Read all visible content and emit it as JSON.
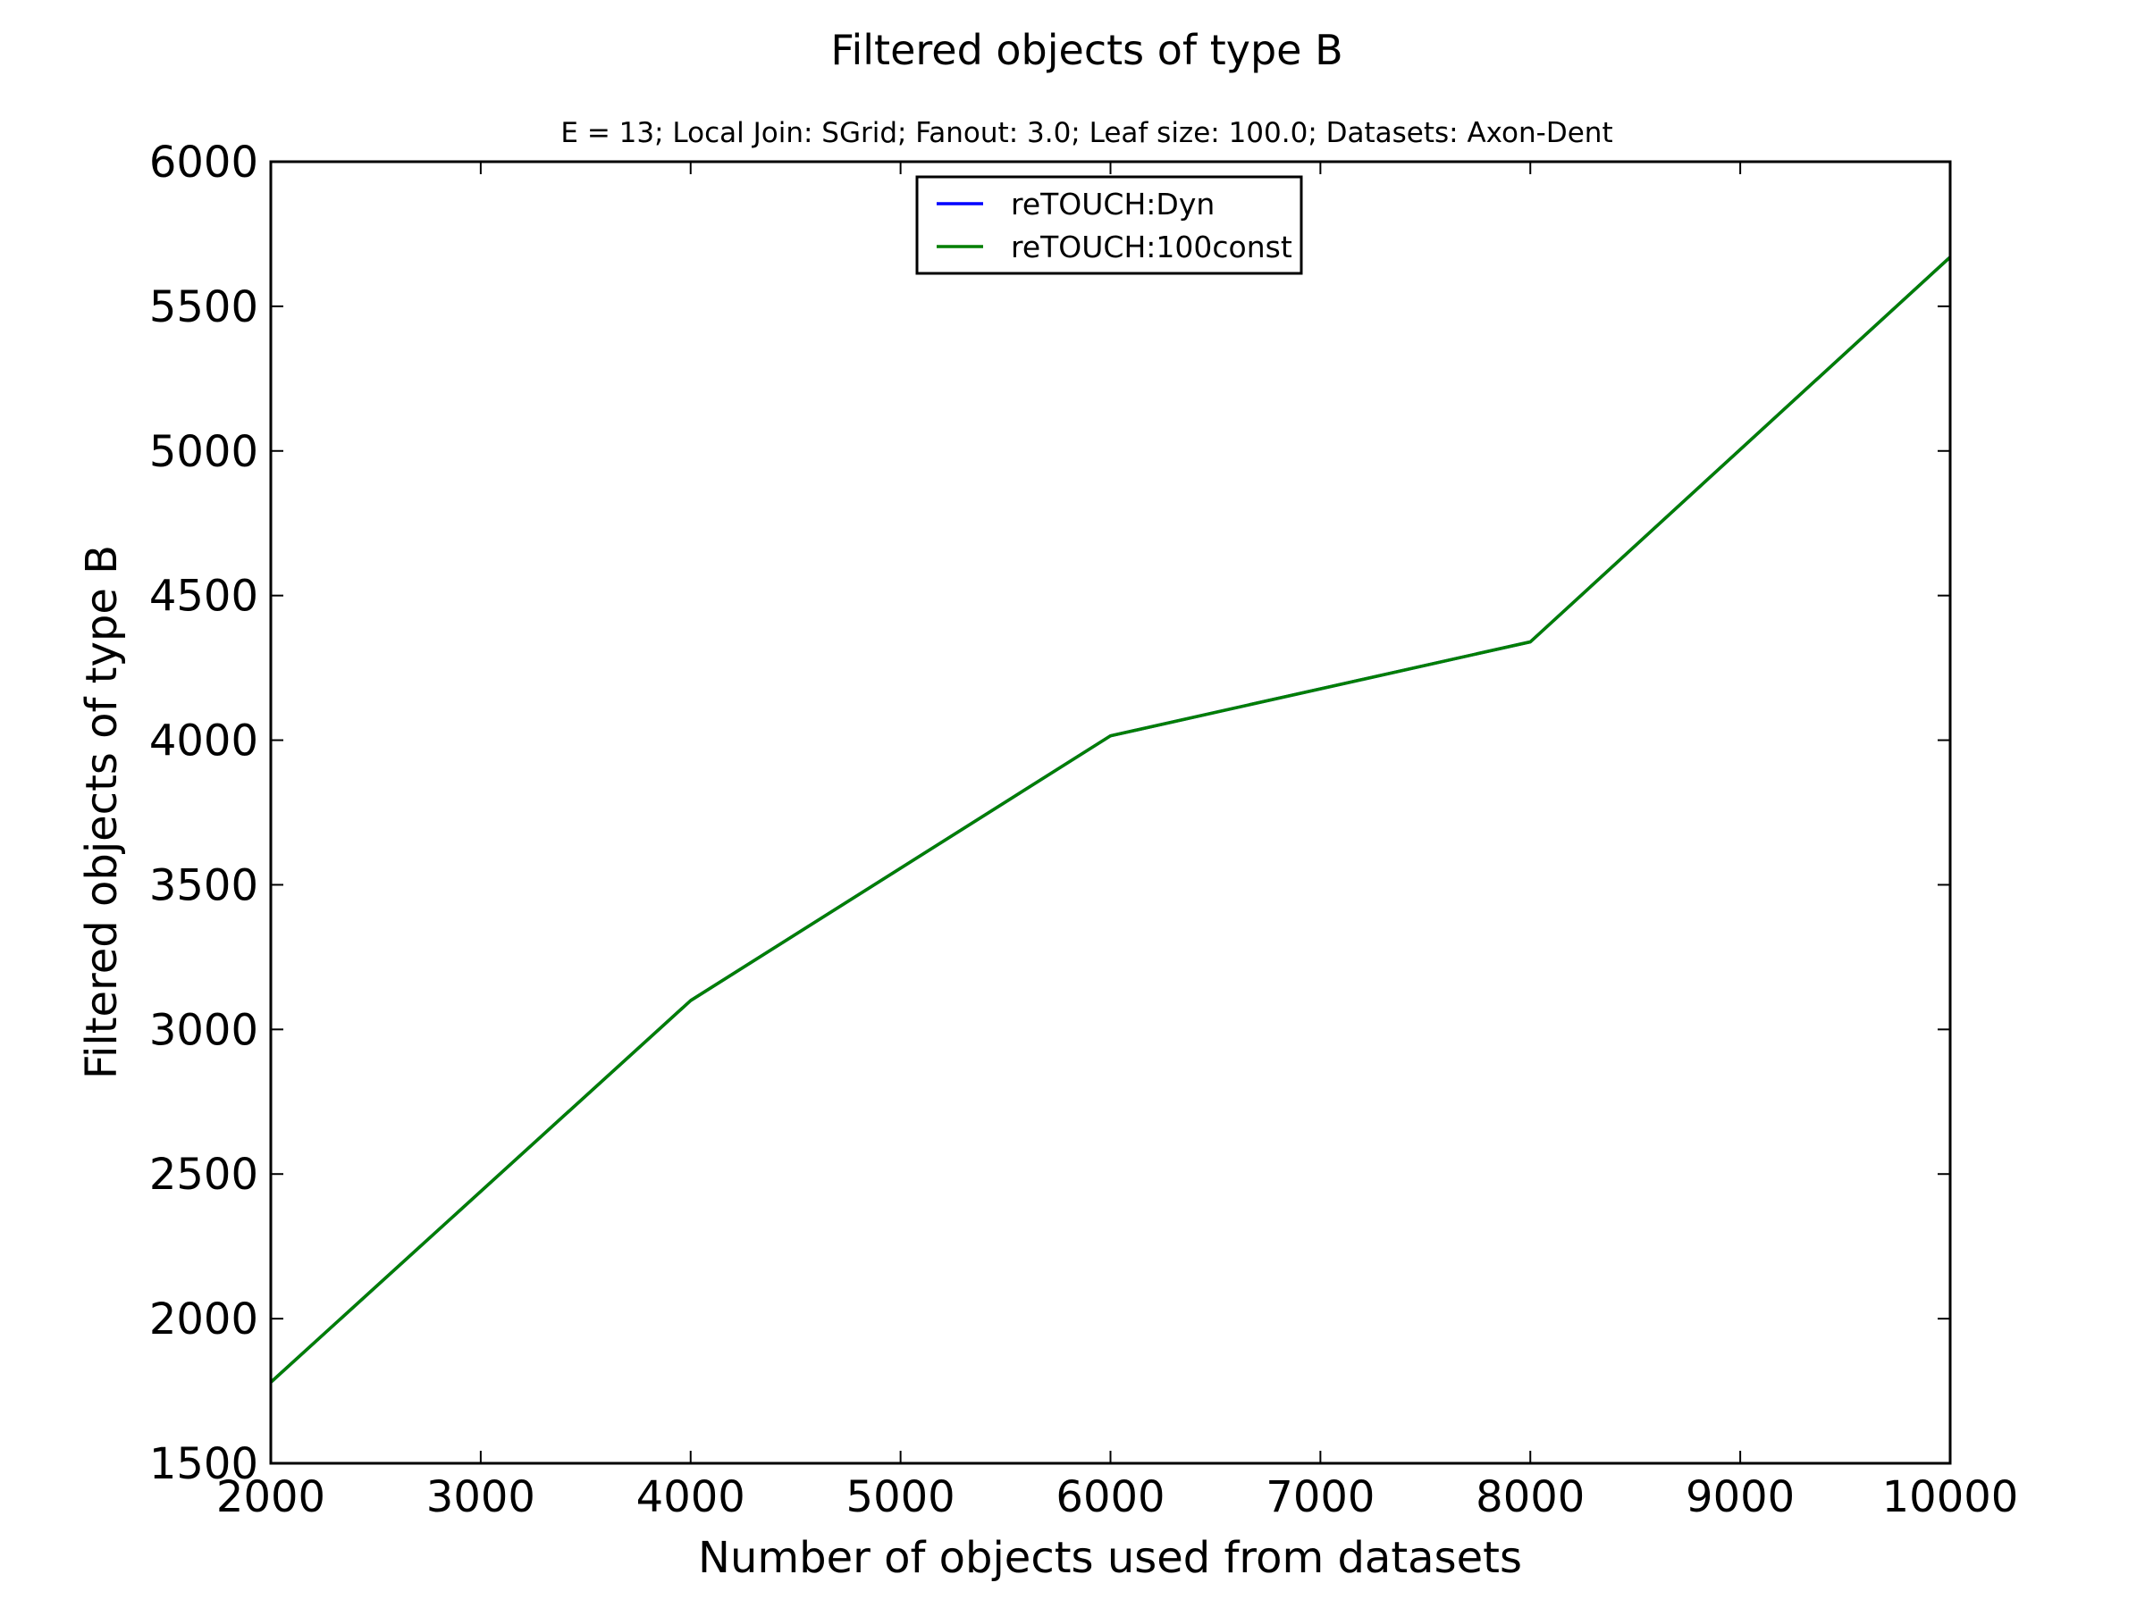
{
  "chart_data": {
    "type": "line",
    "title": "Filtered objects of type B",
    "subtitle": "E = 13; Local Join: SGrid; Fanout: 3.0; Leaf size: 100.0; Datasets: Axon-Dent",
    "xlabel": "Number of objects used from datasets",
    "ylabel": "Filtered objects of type B",
    "xlim": [
      2000,
      10000
    ],
    "ylim": [
      1500,
      6000
    ],
    "xticks": [
      "2000",
      "3000",
      "4000",
      "5000",
      "6000",
      "7000",
      "8000",
      "9000",
      "10000"
    ],
    "yticks": [
      "1500",
      "2000",
      "2500",
      "3000",
      "3500",
      "4000",
      "4500",
      "5000",
      "5500",
      "6000"
    ],
    "x": [
      2000,
      4000,
      6000,
      8000,
      10000
    ],
    "series": [
      {
        "name": "reTOUCH:Dyn",
        "color": "#0000ff",
        "values": [
          1780,
          3100,
          4015,
          4340,
          5670
        ]
      },
      {
        "name": "reTOUCH:100const",
        "color": "#007f00",
        "values": [
          1780,
          3100,
          4015,
          4340,
          5670
        ]
      }
    ],
    "grid": false,
    "legend_position": "top-center"
  }
}
